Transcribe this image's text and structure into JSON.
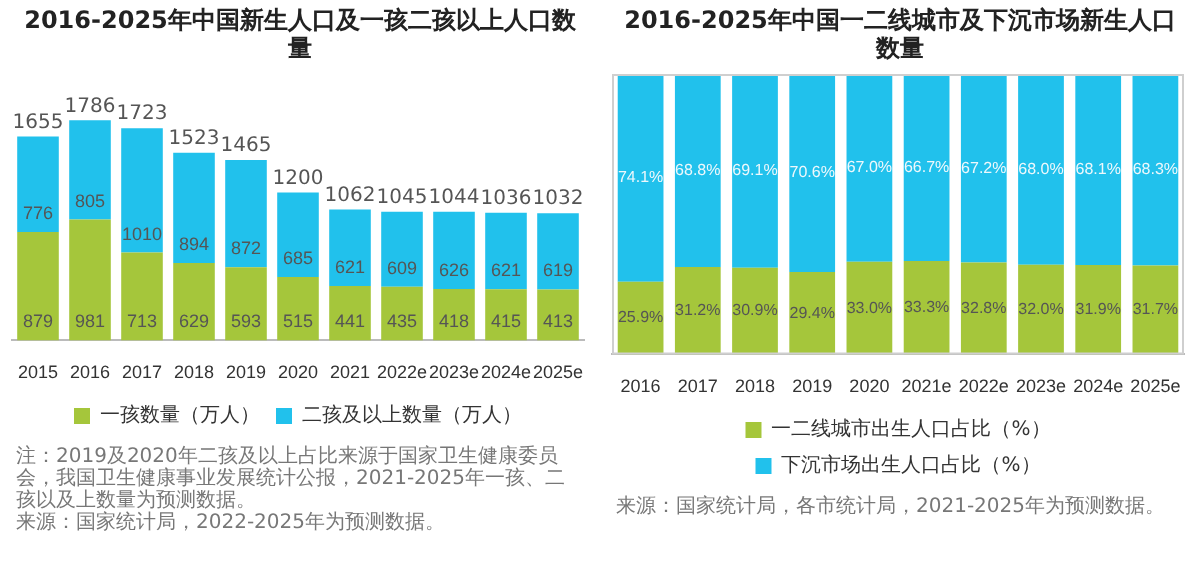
{
  "chart_data": [
    {
      "type": "bar",
      "title": "2016-2025年中国新生人口及一孩二孩以上人口数量",
      "categories": [
        "2015",
        "2016",
        "2017",
        "2018",
        "2019",
        "2020",
        "2021",
        "2022e",
        "2023e",
        "2024e",
        "2025e"
      ],
      "series": [
        {
          "name": "一孩数量（万人）",
          "color": "#a5c63b",
          "values": [
            879,
            981,
            713,
            629,
            593,
            515,
            441,
            435,
            418,
            415,
            413
          ]
        },
        {
          "name": "二孩及以上数量（万人）",
          "color": "#21c1ec",
          "values": [
            776,
            805,
            1010,
            894,
            872,
            685,
            621,
            609,
            626,
            621,
            619
          ]
        }
      ],
      "stacked": true,
      "tick_labels": "x",
      "data_labels": true,
      "totals": [
        "1655",
        "1786",
        "1723",
        "1523",
        "1465",
        "1200",
        "1062",
        "1045",
        "1044",
        "1036",
        "1032"
      ],
      "legend": "bottom",
      "annotations": [
        "注：2019及2020年二孩及以上占比来源于国家卫生健康委员会，我国卫生健康事业发展统计公报，2021-2025年一孩、二孩以及上数量为预测数据。",
        "来源：国家统计局，2022-2025年为预测数据。"
      ]
    },
    {
      "type": "bar",
      "title": "2016-2025年中国一二线城市及下沉市场新生人口数量",
      "categories": [
        "2016",
        "2017",
        "2018",
        "2019",
        "2020",
        "2021e",
        "2022e",
        "2023e",
        "2024e",
        "2025e"
      ],
      "series": [
        {
          "name": "一二线城市出生人口占比（%）",
          "color": "#a5c63b",
          "values": [
            25.9,
            31.2,
            30.9,
            29.4,
            33.0,
            33.3,
            32.8,
            32.0,
            31.9,
            31.7
          ],
          "value_labels": [
            "25.9%",
            "31.2%",
            "30.9%",
            "29.4%",
            "33.0%",
            "33.3%",
            "32.8%",
            "32.0%",
            "31.9%",
            "31.7%"
          ]
        },
        {
          "name": "下沉市场出生人口占比（%）",
          "color": "#21c1ec",
          "values": [
            74.1,
            68.8,
            69.1,
            70.6,
            67.0,
            66.7,
            67.2,
            68.0,
            68.1,
            68.3
          ],
          "value_labels": [
            "74.1%",
            "68.8%",
            "69.1%",
            "70.6%",
            "67.0%",
            "66.7%",
            "67.2%",
            "68.0%",
            "68.1%",
            "68.3%"
          ]
        }
      ],
      "stacked": true,
      "ylim": [
        0,
        100
      ],
      "tick_labels": "x",
      "legend": "bottom",
      "annotations": [
        "来源：国家统计局，各市统计局，2021-2025年为预测数据。"
      ]
    }
  ]
}
